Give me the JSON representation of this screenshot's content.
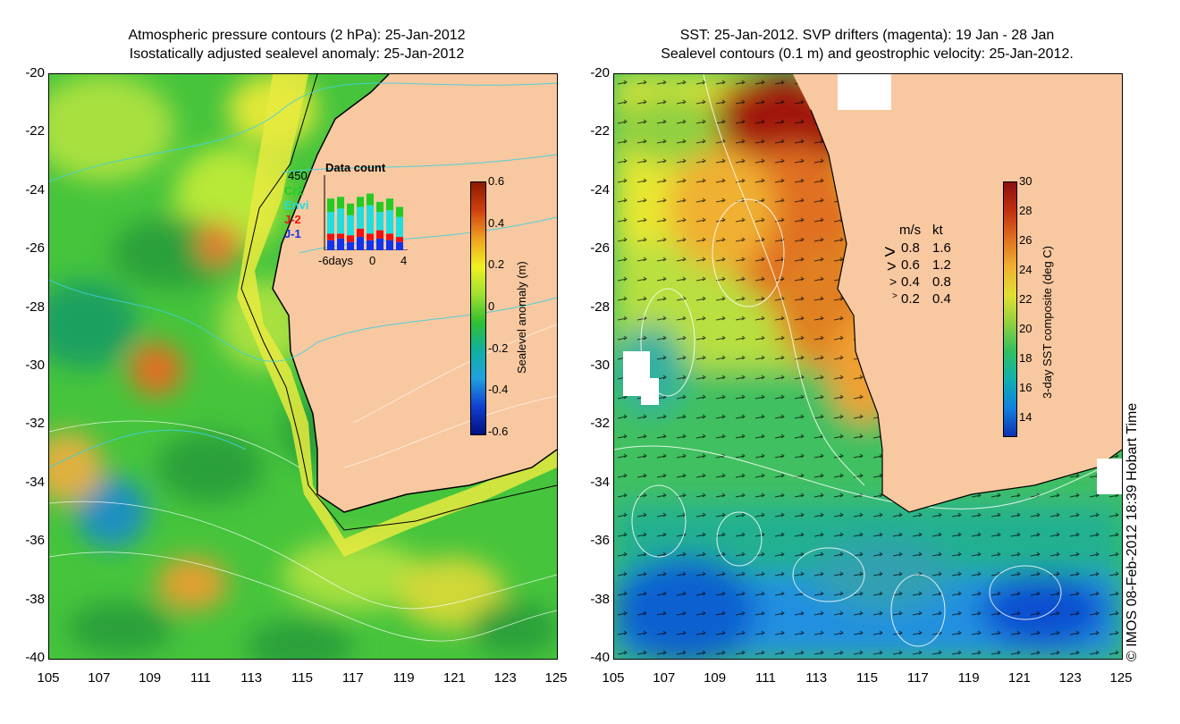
{
  "left_panel": {
    "title_line1": "Atmospheric pressure contours (2 hPa): 25-Jan-2012",
    "title_line2": "Isostatically adjusted sealevel anomaly: 25-Jan-2012",
    "colorbar": {
      "label": "Sealevel anomaly (m)",
      "ticks": [
        "0.6",
        "0.4",
        "0.2",
        "0",
        "-0.2",
        "-0.4",
        "-0.6"
      ]
    },
    "data_count": {
      "title": "Data count",
      "max_label": "450",
      "satellites": [
        {
          "name": "Cr2",
          "color": "#22cc22"
        },
        {
          "name": "Envi",
          "color": "#22dddd"
        },
        {
          "name": "J-2",
          "color": "#ee1111"
        },
        {
          "name": "J-1",
          "color": "#1133ee"
        }
      ],
      "xlabel_left": "-6days",
      "xlabel_mid": "0",
      "xlabel_right": "4",
      "bars": [
        {
          "J-1": 60,
          "J-2": 40,
          "Envi": 130,
          "Cr2": 80
        },
        {
          "J-1": 70,
          "J-2": 30,
          "Envi": 150,
          "Cr2": 70
        },
        {
          "J-1": 50,
          "J-2": 40,
          "Envi": 120,
          "Cr2": 70
        },
        {
          "J-1": 80,
          "J-2": 50,
          "Envi": 130,
          "Cr2": 60
        },
        {
          "J-1": 60,
          "J-2": 40,
          "Envi": 170,
          "Cr2": 70
        },
        {
          "J-1": 70,
          "J-2": 50,
          "Envi": 110,
          "Cr2": 60
        },
        {
          "J-1": 60,
          "J-2": 40,
          "Envi": 140,
          "Cr2": 70
        },
        {
          "J-1": 50,
          "J-2": 30,
          "Envi": 120,
          "Cr2": 60
        }
      ]
    }
  },
  "right_panel": {
    "title_line1": "SST: 25-Jan-2012. SVP drifters (magenta): 19 Jan - 28 Jan",
    "title_line2": "Sealevel contours (0.1 m) and geostrophic velocity: 25-Jan-2012.",
    "colorbar": {
      "label": "3-day SST composite (deg C)",
      "ticks": [
        "30",
        "28",
        "26",
        "24",
        "22",
        "20",
        "18",
        "16",
        "14"
      ]
    },
    "velocity_legend": {
      "header_ms": "m/s",
      "header_kt": "kt",
      "rows": [
        {
          "ms": "0.8",
          "kt": "1.6"
        },
        {
          "ms": "0.6",
          "kt": "1.2"
        },
        {
          "ms": "0.4",
          "kt": "0.8"
        },
        {
          "ms": "0.2",
          "kt": "0.4"
        }
      ]
    },
    "copyright": "© IMOS 08-Feb-2012 18:39 Hobart Time"
  },
  "axes": {
    "lat_ticks": [
      "-20",
      "-22",
      "-24",
      "-26",
      "-28",
      "-30",
      "-32",
      "-34",
      "-36",
      "-38",
      "-40"
    ],
    "lon_ticks": [
      "105",
      "107",
      "109",
      "111",
      "113",
      "115",
      "117",
      "119",
      "121",
      "123",
      "125"
    ]
  },
  "colors": {
    "land": "#f8c8a0",
    "ssh_gradient": [
      "#8b1a00",
      "#d04010",
      "#f0a020",
      "#f0f020",
      "#a0e030",
      "#30c030",
      "#10b0a0",
      "#20a0e0",
      "#1040d0",
      "#001080"
    ],
    "sst_gradient": [
      "#8b1010",
      "#c03010",
      "#e07020",
      "#f0b030",
      "#e0e030",
      "#90d040",
      "#30c060",
      "#10b0b0",
      "#1080e0",
      "#1030b0"
    ]
  }
}
